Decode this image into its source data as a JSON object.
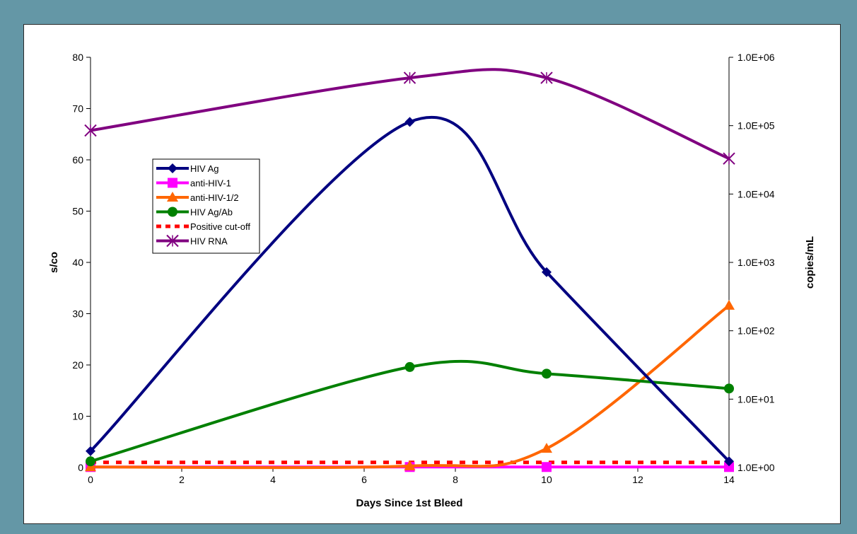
{
  "chart_data": {
    "type": "line",
    "xlabel": "Days Since 1st Bleed",
    "ylabel": "s/co",
    "y2label": "copies/mL",
    "xlim": [
      0,
      14
    ],
    "ylim": [
      0,
      80
    ],
    "y2lim_log10": [
      0,
      6
    ],
    "y2scale": "log",
    "x_ticks": [
      "0",
      "2",
      "4",
      "6",
      "8",
      "10",
      "12",
      "14"
    ],
    "y_ticks": [
      "0",
      "10",
      "20",
      "30",
      "40",
      "50",
      "60",
      "70",
      "80"
    ],
    "y2_ticks": [
      "1.0E+00",
      "1.0E+01",
      "1.0E+02",
      "1.0E+03",
      "1.0E+04",
      "1.0E+05",
      "1.0E+06"
    ],
    "grid": false,
    "legend_position": "left",
    "series": [
      {
        "name": "HIV Ag",
        "axis": "left",
        "color": "#000080",
        "marker": "diamond",
        "dash": false,
        "x": [
          0,
          7,
          10,
          14
        ],
        "values": [
          3.2,
          67.4,
          38.1,
          1.2
        ]
      },
      {
        "name": "anti-HIV-1",
        "axis": "left",
        "color": "#ff00ff",
        "marker": "square",
        "dash": false,
        "x": [
          0,
          7,
          10,
          14
        ],
        "values": [
          0.1,
          0.1,
          0.1,
          0.1
        ]
      },
      {
        "name": "anti-HIV-1/2",
        "axis": "left",
        "color": "#ff6600",
        "marker": "triangle",
        "dash": false,
        "x": [
          0,
          7,
          10,
          14
        ],
        "values": [
          0.1,
          0.3,
          3.7,
          31.6
        ]
      },
      {
        "name": "HIV Ag/Ab",
        "axis": "left",
        "color": "#008000",
        "marker": "circle",
        "dash": false,
        "x": [
          0,
          7,
          10,
          14
        ],
        "values": [
          1.2,
          19.6,
          18.3,
          15.4
        ]
      },
      {
        "name": "Positive cut-off",
        "axis": "left",
        "color": "#ff0000",
        "marker": "none",
        "dash": true,
        "x": [
          0,
          7,
          10,
          14
        ],
        "values": [
          1,
          1,
          1,
          1
        ]
      },
      {
        "name": "HIV RNA",
        "axis": "right",
        "color": "#800080",
        "marker": "star",
        "dash": false,
        "x": [
          0,
          7,
          10,
          14
        ],
        "values": [
          85000,
          500000,
          500000,
          33000
        ]
      }
    ]
  }
}
